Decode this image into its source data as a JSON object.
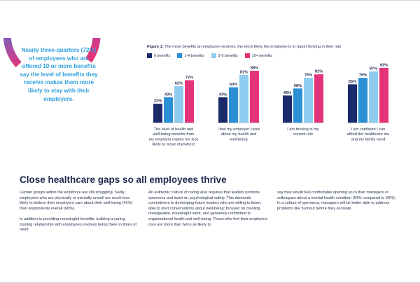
{
  "callout": {
    "text": "Nearly three-quarters (72%) of employees who are offered 10 or more benefits say the level of benefits they receive makes them more likely to stay with their employers."
  },
  "figure": {
    "label": "Figure 1:",
    "caption": "The more benefits an employee receives, the more likely the employee is to report thriving in their role"
  },
  "colors": {
    "0_benefits": "#1b2a6b",
    "1_4_benefits": "#2b8fd4",
    "5_9_benefits": "#8fcdf0",
    "10_plus_benefits": "#e5337a",
    "donut_blue": "#2e9fdc",
    "donut_pink": "#e5337a",
    "text": "#1f2a4d"
  },
  "chart_data": {
    "type": "bar",
    "categories": [
      "The level of health and well-being benefits from my employer makes me less likely to move elsewhere",
      "I feel my employer cares about my health and well-being",
      "I am thriving in my current role",
      "I am confident I can afford the healthcare me and my family need"
    ],
    "series": [
      {
        "name": "0 benefits",
        "values": [
          32,
          43,
          46,
          65
        ]
      },
      {
        "name": "1-4 benefits",
        "values": [
          43,
          60,
          58,
          76
        ]
      },
      {
        "name": "5-9 benefits",
        "values": [
          62,
          81,
          76,
          87
        ]
      },
      {
        "name": "10+ benefits",
        "values": [
          72,
          88,
          82,
          93
        ]
      }
    ],
    "value_suffix": "%",
    "ylim": [
      0,
      100
    ],
    "grid": false,
    "legend": "top-left"
  },
  "section": {
    "title": "Close healthcare gaps so all employees thrive",
    "col1": [
      "Certain groups within the workforce are still struggling. Sadly, employees who are physically or mentally unwell are much less likely to believe their employers care about their well-being (41%) than respondents overall (66%).",
      "In addition to providing meaningful benefits, building a caring, trusting relationship with employees involves being there in times of need."
    ],
    "col2": [
      "An authentic culture of caring also requires that leaders promote openness and insist on psychological safety. This demands commitment to developing future leaders who are willing to listen; able to start conversations about well-being; focused on creating manageable, meaningful work; and genuinely committed to organizational health and well-being. Those who feel their employers care are more than twice as likely to"
    ],
    "col3": [
      "say they would feel comfortable opening up to their managers or colleagues about a mental health condition (64% compared to 30%). In a culture of openness, managers will be better able to address problems like burnout before they escalate."
    ]
  }
}
